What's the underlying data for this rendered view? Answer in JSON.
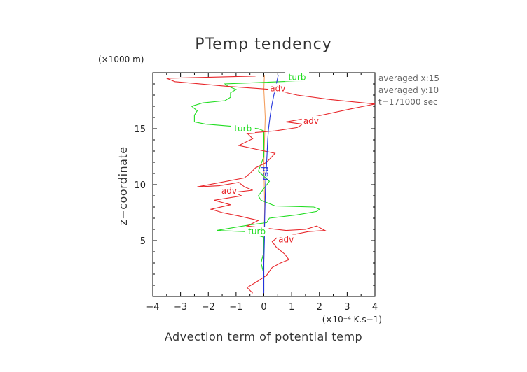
{
  "chart_data": {
    "type": "line",
    "title": "PTemp tendency",
    "xlabel": "Advection term of potential temp",
    "ylabel": "z−coordinate",
    "x_unit": "(×10⁻⁴ K.s−1)",
    "y_unit": "(×1000 m)",
    "xlim": [
      -4,
      4
    ],
    "ylim": [
      0,
      20
    ],
    "x_ticks": [
      -4,
      -3,
      -2,
      -1,
      0,
      1,
      2,
      3,
      4
    ],
    "x_tick_labels": [
      "−4",
      "−3",
      "−2",
      "−1",
      "0",
      "1",
      "2",
      "3",
      "4"
    ],
    "y_ticks": [
      5,
      10,
      15
    ],
    "y_tick_labels": [
      "5",
      "10",
      "15"
    ],
    "grid": false,
    "annotations": [
      "averaged  x:15",
      "averaged  y:10",
      "t=171000 sec"
    ],
    "series": [
      {
        "name": "adv",
        "color": "#e8262a",
        "x": [
          -0.4,
          -0.6,
          -0.2,
          0.1,
          0.3,
          0.6,
          0.9,
          0.75,
          0.45,
          0.3,
          0.5,
          1.0,
          1.6,
          2.2,
          1.9,
          1.5,
          0.8,
          -0.6,
          -0.2,
          -0.9,
          -1.5,
          -1.9,
          -1.2,
          -1.8,
          -0.8,
          -1.1,
          -0.4,
          -0.7,
          -0.9,
          -1.6,
          -2.4,
          -0.7,
          -0.5,
          -0.3,
          0.1,
          0.4,
          -0.9,
          -0.4,
          -0.6,
          0.4,
          1.2,
          1.4,
          0.8,
          1.7,
          3.2,
          4.0,
          2.4,
          1.2,
          0.3,
          -1.4,
          -3.2,
          -3.5,
          -0.3
        ],
        "y": [
          0.3,
          0.8,
          1.4,
          1.9,
          2.6,
          3.0,
          3.3,
          3.8,
          4.4,
          4.9,
          5.3,
          5.5,
          5.8,
          5.9,
          6.3,
          6.0,
          5.9,
          6.3,
          6.8,
          7.2,
          7.5,
          7.8,
          8.2,
          8.6,
          9.0,
          9.3,
          9.5,
          9.8,
          10.2,
          9.9,
          9.8,
          10.6,
          11.0,
          11.5,
          12.0,
          12.8,
          13.5,
          14.1,
          14.6,
          14.8,
          15.1,
          15.4,
          15.6,
          16.0,
          16.8,
          17.2,
          17.6,
          18.0,
          18.5,
          18.8,
          19.2,
          19.5,
          19.7
        ],
        "labels": [
          {
            "x": -1.25,
            "y": 9.45
          },
          {
            "x": 0.8,
            "y": 5.1
          },
          {
            "x": 1.7,
            "y": 15.7
          },
          {
            "x": 0.5,
            "y": 18.6
          }
        ]
      },
      {
        "name": "turb",
        "color": "#22dd22",
        "x": [
          0.0,
          0.0,
          -0.1,
          0.0,
          0.0,
          0.0,
          -0.7,
          -1.7,
          -1.0,
          -0.5,
          0.1,
          0.2,
          1.2,
          1.9,
          2.0,
          1.8,
          0.4,
          -0.1,
          -0.2,
          0.2,
          -0.2,
          0.0,
          0.0,
          0.0,
          -0.2,
          -0.5,
          -1.1,
          -2.1,
          -2.5,
          -2.5,
          -2.4,
          -2.6,
          -2.2,
          -1.4,
          -1.2,
          -1.2,
          -1.0,
          -1.3,
          -1.4,
          1.6,
          1.6,
          0.9,
          1.1
        ],
        "y": [
          0.5,
          2.0,
          3.0,
          4.0,
          5.0,
          5.3,
          5.8,
          5.9,
          6.2,
          6.4,
          6.6,
          7.0,
          7.3,
          7.6,
          7.8,
          8.0,
          8.1,
          8.6,
          9.0,
          10.3,
          11.2,
          12.5,
          14.0,
          14.8,
          15.0,
          15.1,
          15.2,
          15.4,
          15.6,
          16.2,
          16.6,
          17.0,
          17.3,
          17.5,
          17.8,
          18.2,
          18.5,
          18.8,
          19.0,
          19.3,
          19.5,
          19.7,
          19.8
        ],
        "labels": [
          {
            "x": -0.75,
            "y": 15.0
          },
          {
            "x": -0.25,
            "y": 5.8
          },
          {
            "x": 1.2,
            "y": 19.6
          }
        ]
      },
      {
        "name": "rad",
        "color": "#2233dd",
        "x": [
          0.0,
          0.0,
          0.02,
          0.03,
          0.04,
          0.05,
          0.06,
          0.08,
          0.1,
          0.12,
          0.14,
          0.17,
          0.22,
          0.28,
          0.36,
          0.45,
          0.52
        ],
        "y": [
          0.3,
          3.0,
          5.0,
          7.0,
          8.0,
          9.0,
          10.0,
          11.0,
          12.0,
          13.0,
          14.0,
          15.0,
          16.0,
          17.0,
          18.0,
          19.0,
          19.8
        ],
        "labels": [
          {
            "x": 0.05,
            "y": 11.0
          }
        ]
      },
      {
        "name": "",
        "color": "#f4a060",
        "x": [
          0.0,
          0.0,
          0.03,
          0.0,
          0.05,
          0.0,
          0.02
        ],
        "y": [
          0.3,
          4.0,
          8.0,
          12.0,
          16.0,
          18.5,
          19.8
        ],
        "labels": []
      }
    ]
  }
}
